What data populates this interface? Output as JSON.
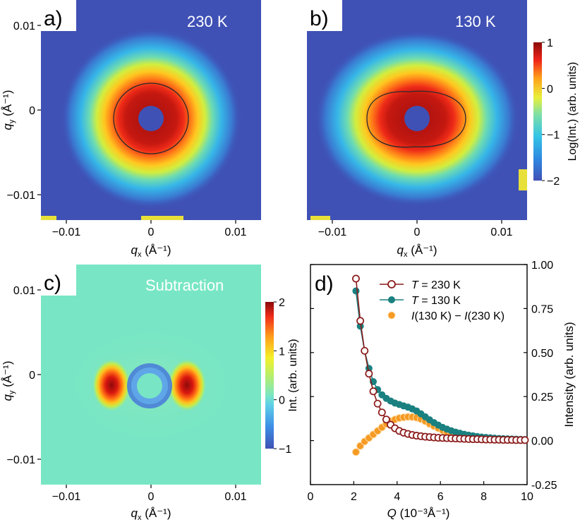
{
  "chart_data": [
    {
      "panel": "a)",
      "type": "heatmap",
      "annotation": "230 K",
      "xlabel_sym": "q",
      "xlabel_sub": "x",
      "xlabel_unit": "(Å⁻¹)",
      "ylabel_sym": "q",
      "ylabel_sub": "y",
      "ylabel_unit": "(Å⁻¹)",
      "xlim": [
        -0.013,
        0.013
      ],
      "ylim": [
        -0.013,
        0.013
      ],
      "xticks": [
        -0.01,
        0,
        0.01
      ],
      "xtick_labels": [
        "−0.01",
        "0",
        "0.01"
      ],
      "yticks": [
        -0.01,
        0,
        0.01
      ],
      "ytick_labels": [
        "−0.01",
        "0",
        "0.01"
      ],
      "pattern": "isotropic",
      "contour_axes": [
        0.0044,
        0.0041
      ]
    },
    {
      "panel": "b)",
      "type": "heatmap",
      "annotation": "130 K",
      "xlabel_sym": "q",
      "xlabel_sub": "x",
      "xlabel_unit": "(Å⁻¹)",
      "ylabel_sym": "q",
      "ylabel_sub": "y",
      "ylabel_unit": "(Å⁻¹)",
      "xlim": [
        -0.013,
        0.013
      ],
      "ylim": [
        -0.013,
        0.013
      ],
      "xticks": [
        -0.01,
        0,
        0.01
      ],
      "xtick_labels": [
        "−0.01",
        "0",
        "0.01"
      ],
      "yticks": [
        -0.01,
        0,
        0.01
      ],
      "ytick_labels": [
        "−0.01",
        "0",
        "0.01"
      ],
      "pattern": "anisotropic",
      "contour_axes": [
        0.0061,
        0.0043
      ],
      "colorbar": {
        "label": "Log(Int.) (arb. units)",
        "range": [
          -2,
          1
        ],
        "ticks": [
          1,
          0,
          -1,
          -2
        ],
        "tick_labels": [
          "1",
          "0",
          "−1",
          "−2"
        ]
      }
    },
    {
      "panel": "c)",
      "type": "heatmap",
      "annotation": "Subtraction",
      "xlabel_sym": "q",
      "xlabel_sub": "x",
      "xlabel_unit": "(Å⁻¹)",
      "ylabel_sym": "q",
      "ylabel_sub": "y",
      "ylabel_unit": "(Å⁻¹)",
      "xlim": [
        -0.013,
        0.013
      ],
      "ylim": [
        -0.013,
        0.013
      ],
      "xticks": [
        -0.01,
        0,
        0.01
      ],
      "xtick_labels": [
        "−0.01",
        "0",
        "0.01"
      ],
      "yticks": [
        -0.01,
        0,
        0.01
      ],
      "ytick_labels": [
        "−0.01",
        "0",
        "0.01"
      ],
      "pattern": "difference",
      "lobe_centers_qx": [
        -0.0045,
        0.0045
      ],
      "colorbar": {
        "label": "Int. (arb. units)",
        "range": [
          -1,
          2
        ],
        "ticks": [
          2,
          1,
          0,
          -1
        ],
        "tick_labels": [
          "2",
          "1",
          "0",
          "−1"
        ]
      }
    },
    {
      "panel": "d)",
      "type": "scatter",
      "xlabel_sym": "Q",
      "xlabel_unit": "(10⁻³Å⁻¹)",
      "ylabel": "Intensity (arb. units)",
      "xlim": [
        0,
        10
      ],
      "ylim": [
        -0.25,
        1.0
      ],
      "xticks": [
        0,
        2,
        4,
        6,
        8,
        10
      ],
      "yticks": [
        1.0,
        0.75,
        0.5,
        0.25,
        0.0,
        -0.25
      ],
      "ytick_labels": [
        "1.00",
        "0.75",
        "0.50",
        "0.25",
        "0.00",
        "-0.25"
      ],
      "legend_position": "top-right",
      "x": [
        2.1,
        2.3,
        2.5,
        2.7,
        2.9,
        3.1,
        3.3,
        3.5,
        3.7,
        3.9,
        4.1,
        4.3,
        4.5,
        4.7,
        4.9,
        5.1,
        5.3,
        5.5,
        5.7,
        5.9,
        6.1,
        6.3,
        6.5,
        6.7,
        6.9,
        7.1,
        7.3,
        7.5,
        7.7,
        7.9,
        8.1,
        8.3,
        8.5,
        8.7,
        8.9,
        9.1,
        9.3,
        9.5,
        9.7,
        9.9
      ],
      "series": [
        {
          "name_sym": "T",
          "name_rest": " = 230 K",
          "color": "#8b1a1a",
          "marker": "open",
          "values": [
            0.92,
            0.68,
            0.51,
            0.38,
            0.28,
            0.21,
            0.16,
            0.12,
            0.09,
            0.07,
            0.055,
            0.045,
            0.038,
            0.032,
            0.028,
            0.025,
            0.022,
            0.02,
            0.018,
            0.016,
            0.015,
            0.014,
            0.013,
            0.012,
            0.011,
            0.01,
            0.009,
            0.008,
            0.008,
            0.007,
            0.006,
            0.006,
            0.005,
            0.005,
            0.004,
            0.004,
            0.004,
            0.003,
            0.003,
            0.003
          ]
        },
        {
          "name_sym": "T",
          "name_rest": " = 130 K",
          "color": "#1a8080",
          "marker": "filled",
          "values": [
            0.85,
            0.65,
            0.51,
            0.41,
            0.335,
            0.29,
            0.26,
            0.24,
            0.225,
            0.213,
            0.205,
            0.197,
            0.19,
            0.18,
            0.168,
            0.152,
            0.135,
            0.118,
            0.102,
            0.088,
            0.075,
            0.065,
            0.056,
            0.048,
            0.042,
            0.036,
            0.031,
            0.027,
            0.023,
            0.02,
            0.018,
            0.016,
            0.014,
            0.012,
            0.011,
            0.01,
            0.009,
            0.008,
            0.007,
            0.006
          ]
        },
        {
          "name_sym": "I",
          "name_rest": "(130 K) − ",
          "name_sym2": "I",
          "name_rest2": "(230 K)",
          "color": "#f59a23",
          "marker": "filled-sphere",
          "values": [
            -0.065,
            -0.03,
            -0.005,
            0.015,
            0.035,
            0.055,
            0.075,
            0.095,
            0.11,
            0.12,
            0.128,
            0.132,
            0.135,
            0.134,
            0.13,
            0.122,
            0.11,
            0.095,
            0.082,
            0.07,
            0.058,
            0.048,
            0.04,
            0.033,
            0.028,
            0.024,
            0.02,
            0.017,
            0.014,
            0.012,
            0.01,
            0.009,
            0.008,
            0.007,
            0.006,
            0.005,
            0.005,
            0.004,
            0.004,
            0.003
          ]
        }
      ]
    }
  ]
}
